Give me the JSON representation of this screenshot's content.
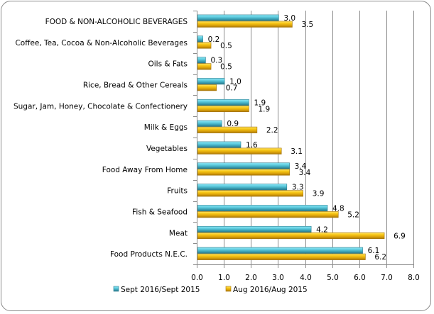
{
  "chart_data": {
    "type": "bar",
    "orientation": "horizontal",
    "title": "",
    "xlabel": "",
    "ylabel": "",
    "xlim": [
      0,
      8
    ],
    "x_ticks": [
      "0.0",
      "1.0",
      "2.0",
      "3.0",
      "4.0",
      "5.0",
      "6.0",
      "7.0",
      "8.0"
    ],
    "grid": "vertical",
    "legend_position": "bottom",
    "categories": [
      "FOOD & NON-ALCOHOLIC BEVERAGES",
      "Coffee, Tea, Cocoa & Non-Alcoholic Beverages",
      "Oils & Fats",
      "Rice, Bread & Other Cereals",
      "Sugar, Jam, Honey, Chocolate & Confectionery",
      "Milk & Eggs",
      "Vegetables",
      "Food Away From Home",
      "Fruits",
      "Fish & Seafood",
      "Meat",
      "Food Products N.E.C."
    ],
    "series": [
      {
        "name": "Sept 2016/Sept 2015",
        "color": "#4bb8cc",
        "values": [
          3.0,
          0.2,
          0.3,
          1.0,
          1.9,
          0.9,
          1.6,
          3.4,
          3.3,
          4.8,
          4.2,
          6.1
        ]
      },
      {
        "name": "Aug 2016/Aug 2015",
        "color": "#f2b90c",
        "values": [
          3.5,
          0.5,
          0.5,
          0.7,
          1.9,
          2.2,
          3.1,
          3.4,
          3.9,
          5.2,
          6.9,
          6.2
        ]
      }
    ]
  }
}
